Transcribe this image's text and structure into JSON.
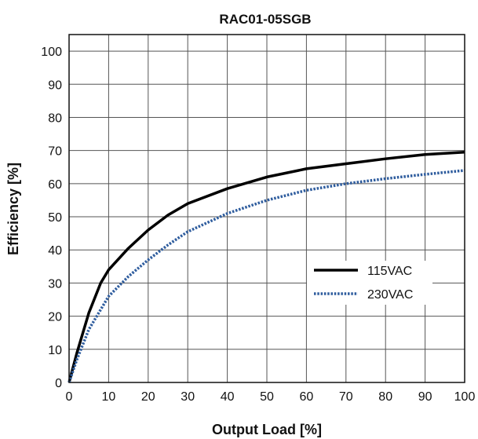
{
  "chart_data": {
    "type": "line",
    "title": "RAC01-05SGB",
    "xlabel": "Output Load [%]",
    "ylabel": "Efficiency [%]",
    "xlim": [
      0,
      100
    ],
    "ylim": [
      0,
      105
    ],
    "xticks": [
      0,
      10,
      20,
      30,
      40,
      50,
      60,
      70,
      80,
      90,
      100
    ],
    "yticks": [
      0,
      10,
      20,
      30,
      40,
      50,
      60,
      70,
      80,
      90,
      100
    ],
    "grid": true,
    "legend_position": "center-right",
    "series": [
      {
        "name": "115VAC",
        "color": "#000000",
        "style": "solid",
        "x": [
          0,
          2,
          5,
          8,
          10,
          15,
          20,
          25,
          30,
          40,
          50,
          60,
          70,
          80,
          90,
          100
        ],
        "y": [
          0,
          9,
          21,
          30,
          34,
          40.5,
          46,
          50.5,
          54,
          58.5,
          62,
          64.5,
          66,
          67.5,
          68.8,
          69.5
        ]
      },
      {
        "name": "230VAC",
        "color": "#2f5d9e",
        "style": "dotted",
        "x": [
          0,
          2,
          5,
          8,
          10,
          15,
          20,
          25,
          30,
          40,
          50,
          60,
          70,
          80,
          90,
          100
        ],
        "y": [
          0,
          7,
          16,
          22,
          26,
          32,
          37,
          41.5,
          45.5,
          51,
          55,
          58,
          60,
          61.5,
          62.8,
          64
        ]
      }
    ]
  }
}
